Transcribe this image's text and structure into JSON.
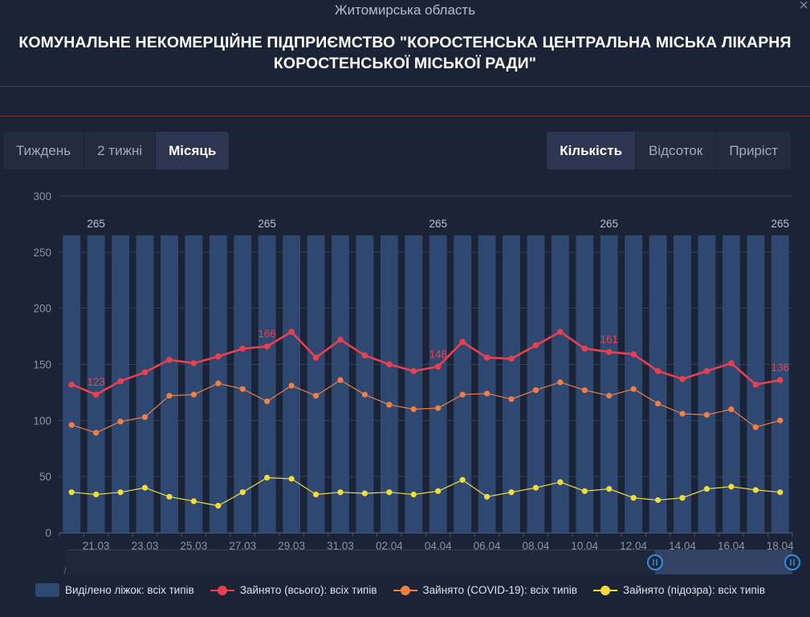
{
  "header": {
    "region": "Житомирська область",
    "title_line1": "КОМУНАЛЬНЕ НЕКОМЕРЦІЙНЕ ПІДПРИЄМСТВО \"КОРОСТЕНСЬКА ЦЕНТРАЛЬНА МІСЬКА ЛІКАРНЯ",
    "title_line2": "КОРОСТЕНСЬКОЇ МІСЬКОЇ РАДИ\"",
    "close_symbol": "×"
  },
  "period_tabs": [
    {
      "label": "Тиждень",
      "active": false
    },
    {
      "label": "2 тижні",
      "active": false
    },
    {
      "label": "Місяць",
      "active": true
    }
  ],
  "mode_tabs": [
    {
      "label": "Кількість",
      "active": true
    },
    {
      "label": "Відсоток",
      "active": false
    },
    {
      "label": "Приріст",
      "active": false
    }
  ],
  "colors": {
    "bars": "#2e4871",
    "total": "#e8404f",
    "covid": "#f07f45",
    "suspect": "#f2dc3a",
    "grid": "#34405a",
    "axis_text": "#8a93a8"
  },
  "chart_data": {
    "type": "bar",
    "x": [
      "20.03",
      "21.03",
      "22.03",
      "23.03",
      "24.03",
      "25.03",
      "26.03",
      "27.03",
      "28.03",
      "29.03",
      "30.03",
      "31.03",
      "01.04",
      "02.04",
      "03.04",
      "04.04",
      "05.04",
      "06.04",
      "07.04",
      "08.04",
      "09.04",
      "10.04",
      "11.04",
      "12.04",
      "13.04",
      "14.04",
      "15.04",
      "16.04",
      "17.04",
      "18.04"
    ],
    "x_tick_labels": [
      "21.03",
      "23.03",
      "25.03",
      "27.03",
      "29.03",
      "31.03",
      "02.04",
      "04.04",
      "06.04",
      "08.04",
      "10.04",
      "12.04",
      "14.04",
      "16.04",
      "18.04"
    ],
    "y_ticks": [
      0,
      50,
      100,
      150,
      200,
      250,
      300
    ],
    "ylim": [
      0,
      300
    ],
    "grid": true,
    "legend_position": "bottom",
    "series": [
      {
        "name": "Виділено ліжок: всіх типів",
        "type": "bar",
        "values": [
          265,
          265,
          265,
          265,
          265,
          265,
          265,
          265,
          265,
          265,
          265,
          265,
          265,
          265,
          265,
          265,
          265,
          265,
          265,
          265,
          265,
          265,
          265,
          265,
          265,
          265,
          265,
          265,
          265,
          265
        ],
        "labeled_values": [
          {
            "index": 1,
            "value": 265
          },
          {
            "index": 8,
            "value": 265
          },
          {
            "index": 15,
            "value": 265
          },
          {
            "index": 22,
            "value": 265
          },
          {
            "index": 29,
            "value": 265
          }
        ]
      },
      {
        "name": "Зайнято (всього): всіх типів",
        "type": "line",
        "values": [
          132,
          123,
          135,
          143,
          154,
          151,
          157,
          164,
          166,
          179,
          156,
          172,
          158,
          150,
          144,
          148,
          170,
          156,
          155,
          167,
          179,
          164,
          161,
          159,
          144,
          137,
          144,
          151,
          132,
          136
        ],
        "labeled_values": [
          {
            "index": 1,
            "value": 123
          },
          {
            "index": 8,
            "value": 166
          },
          {
            "index": 15,
            "value": 148
          },
          {
            "index": 22,
            "value": 161
          },
          {
            "index": 29,
            "value": 136
          }
        ]
      },
      {
        "name": "Зайнято (COVID-19): всіх типів",
        "type": "line",
        "values": [
          96,
          89,
          99,
          103,
          122,
          123,
          133,
          128,
          117,
          131,
          122,
          136,
          123,
          114,
          110,
          111,
          123,
          124,
          119,
          127,
          134,
          127,
          122,
          128,
          115,
          106,
          105,
          110,
          94,
          100
        ]
      },
      {
        "name": "Зайнято (підозра): всіх типів",
        "type": "line",
        "values": [
          36,
          34,
          36,
          40,
          32,
          28,
          24,
          36,
          49,
          48,
          34,
          36,
          35,
          36,
          34,
          37,
          47,
          32,
          36,
          40,
          45,
          37,
          39,
          31,
          29,
          31,
          39,
          41,
          38,
          36
        ]
      }
    ]
  }
}
